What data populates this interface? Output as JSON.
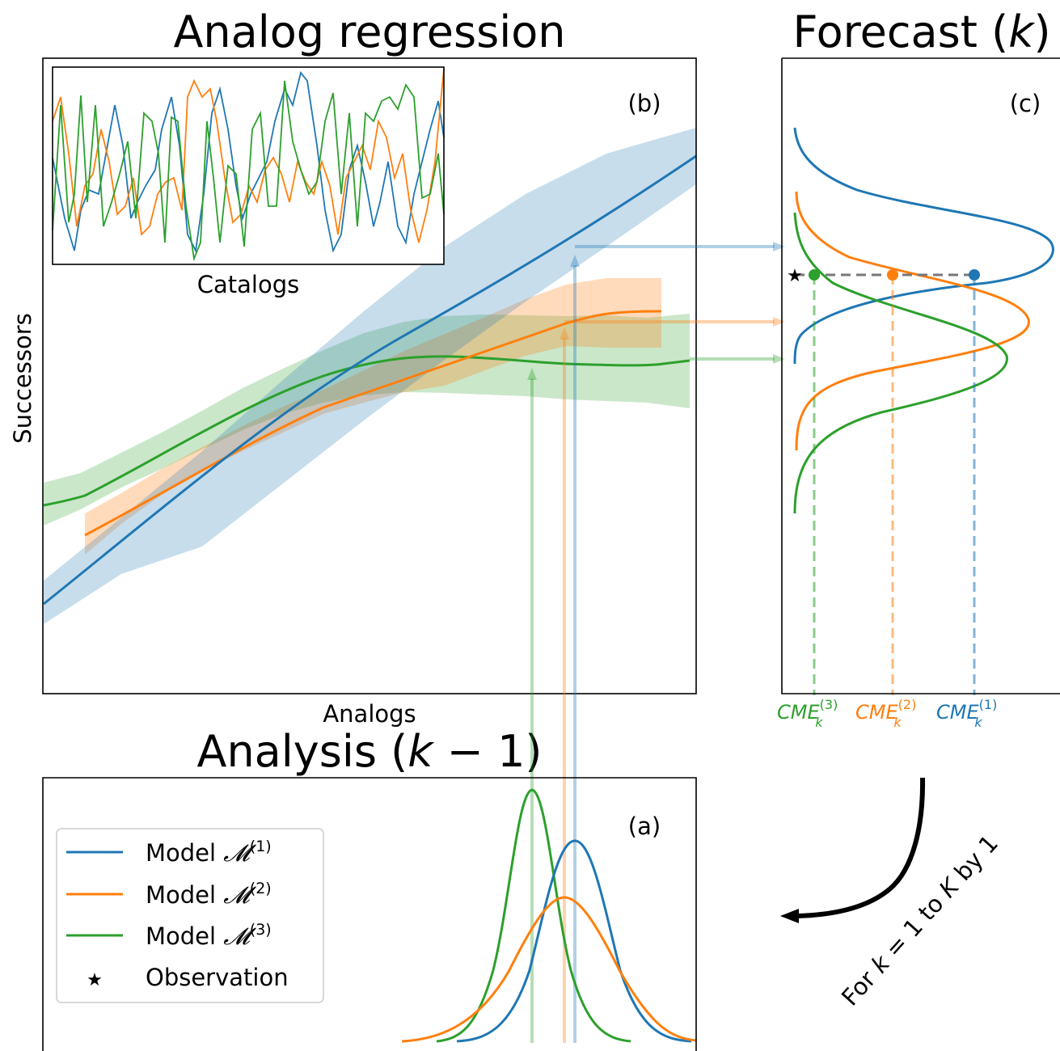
{
  "titles": {
    "analog_regression": "Analog regression",
    "forecast_prefix": "Forecast (",
    "forecast_var": "k",
    "forecast_suffix": ")",
    "analysis_prefix": "Analysis (",
    "analysis_var": "k",
    "analysis_suffix": " − 1)"
  },
  "panel_labels": {
    "a": "(a)",
    "b": "(b)",
    "c": "(c)"
  },
  "axes": {
    "b_xlabel": "Analogs",
    "b_ylabel": "Successors",
    "inset_xlabel": "Catalogs"
  },
  "legend": [
    {
      "prefix": "Model ",
      "symbol": "𝓜",
      "sup": "(1)",
      "color": "#1f77b4"
    },
    {
      "prefix": "Model ",
      "symbol": "𝓜",
      "sup": "(2)",
      "color": "#ff7f0e"
    },
    {
      "prefix": "Model ",
      "symbol": "𝓜",
      "sup": "(3)",
      "color": "#2ca02c"
    },
    {
      "prefix": "",
      "symbol": "Observation",
      "sup": "",
      "color": "#000000",
      "marker": "star"
    }
  ],
  "cme_labels": [
    {
      "base": "CME",
      "sub": "k",
      "sup": "(3)",
      "color": "#2ca02c"
    },
    {
      "base": "CME",
      "sub": "k",
      "sup": "(2)",
      "color": "#ff7f0e"
    },
    {
      "base": "CME",
      "sub": "k",
      "sup": "(1)",
      "color": "#1f77b4"
    }
  ],
  "loop_label": {
    "prefix": "For ",
    "k": "k",
    "mid1": " = 1 to ",
    "K": "K",
    "suffix": " by 1"
  },
  "colors": {
    "model1": "#1f77b4",
    "model2": "#ff7f0e",
    "model3": "#2ca02c",
    "observation": "#000000",
    "observation_line": "#777777"
  }
}
